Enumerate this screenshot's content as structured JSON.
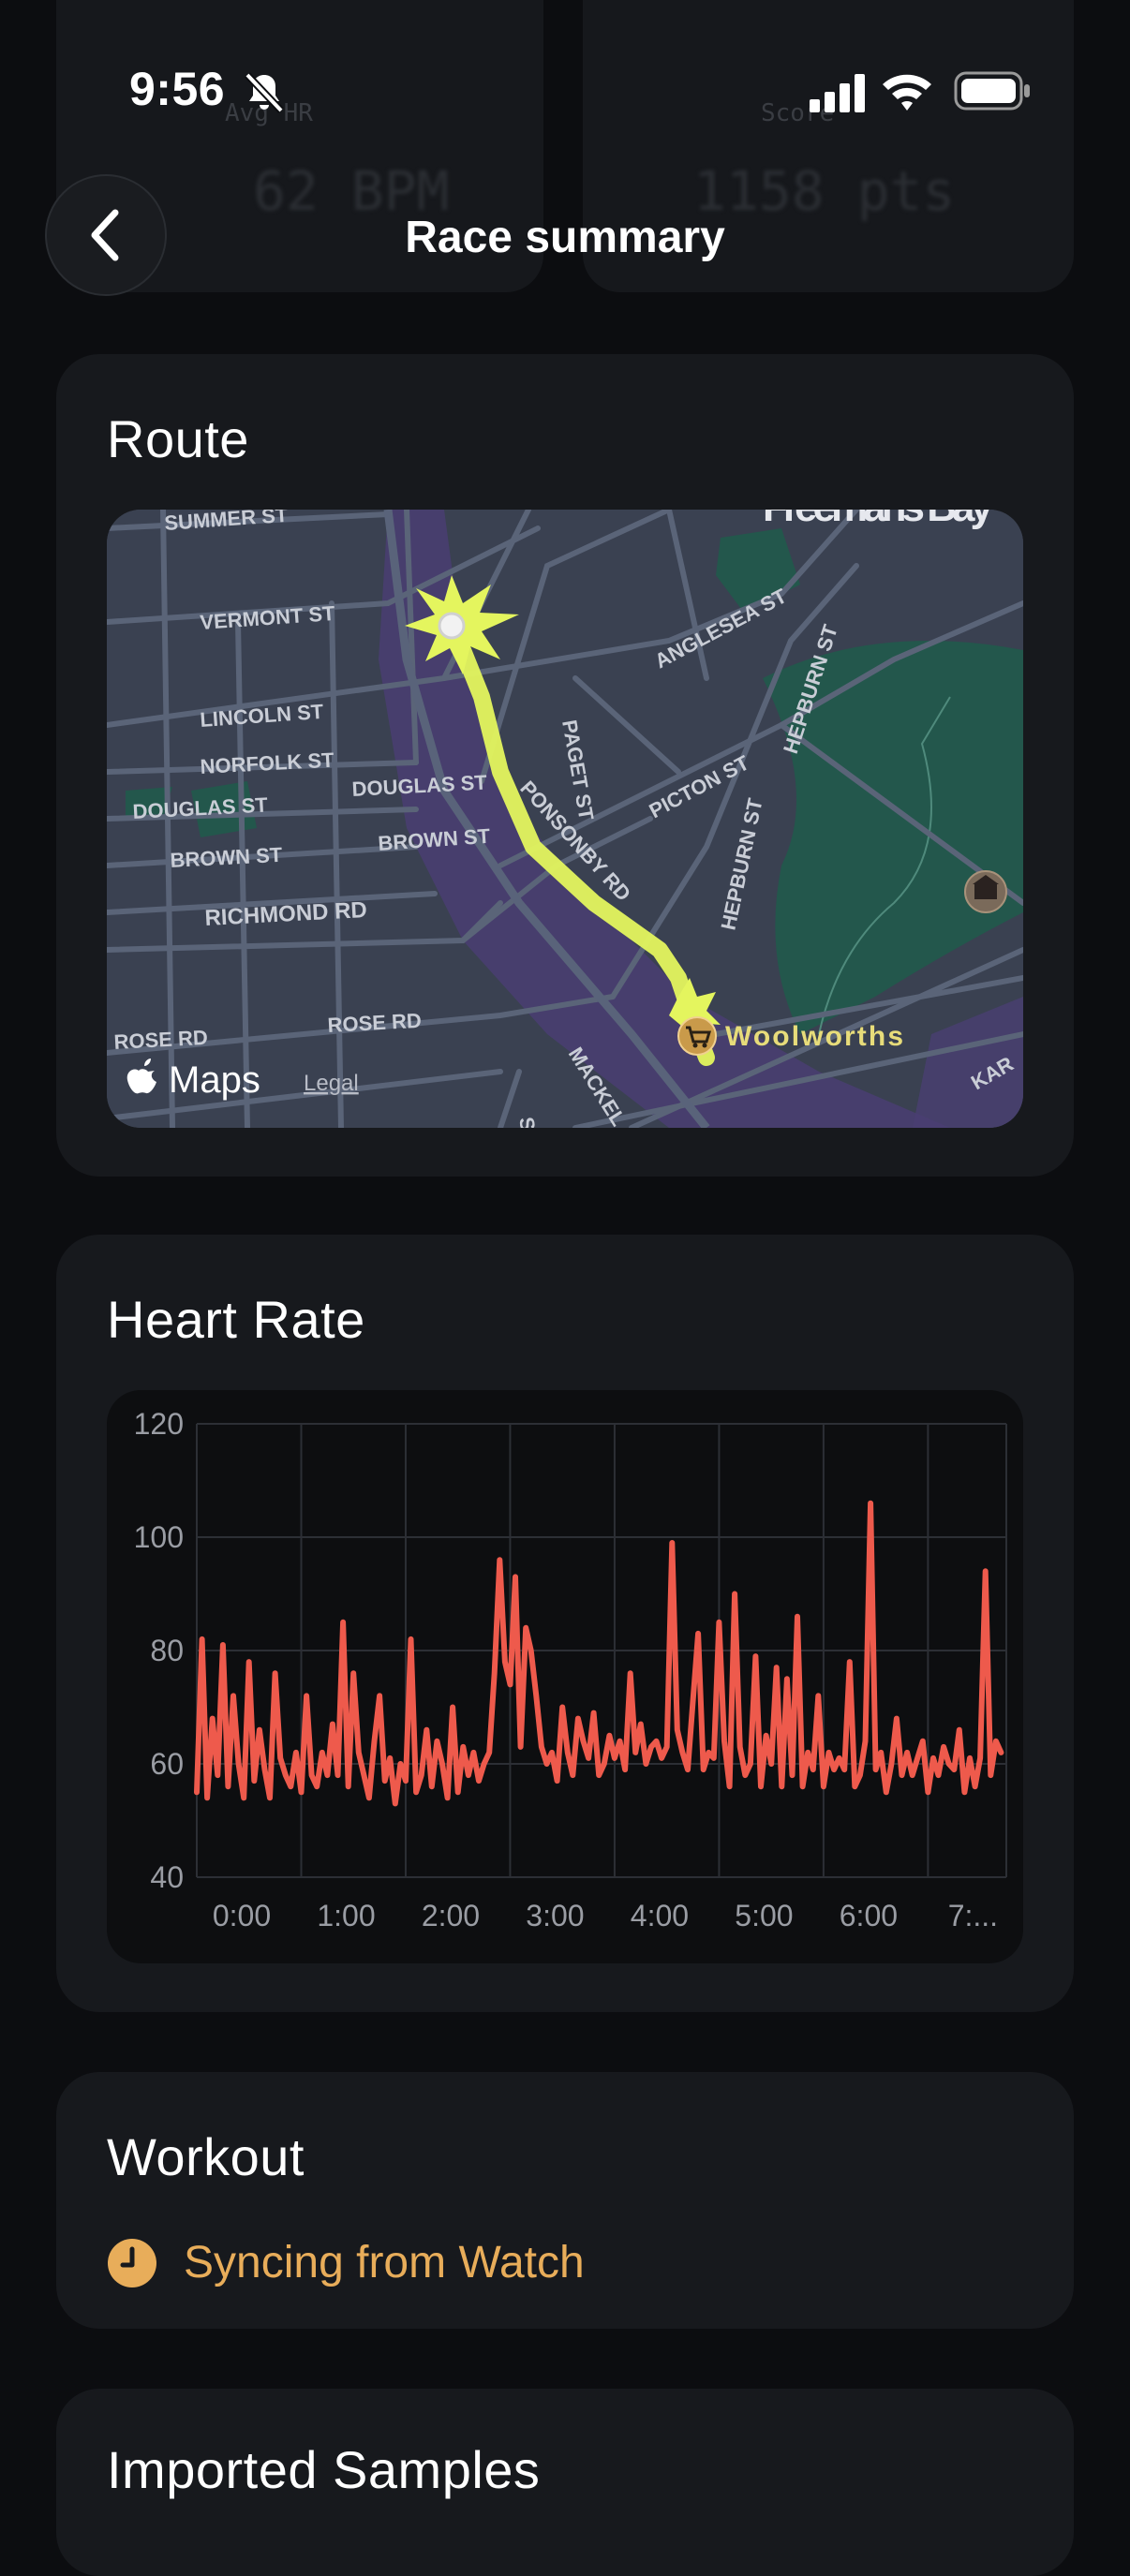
{
  "status_bar": {
    "time": "9:56"
  },
  "background_stats": [
    {
      "label": "Avg HR",
      "value": "62 BPM"
    },
    {
      "label": "Score",
      "value": "1158 pts"
    }
  ],
  "header": {
    "title": "Race summary"
  },
  "route": {
    "title": "Route",
    "map": {
      "streets": [
        "SUMMER ST",
        "VERMONT ST",
        "LINCOLN ST",
        "NORFOLK ST",
        "DOUGLAS ST",
        "DOUGLAS ST",
        "BROWN ST",
        "BROWN ST",
        "RICHMOND RD",
        "ROSE RD",
        "ROSE RD",
        "PONSONBY RD",
        "PAGET ST",
        "ANGLESEA ST",
        "PICTON ST",
        "HEPBURN ST",
        "HEPBURN ST",
        "MACKEL",
        "SC",
        "KAR"
      ],
      "area_label": "Freemans Bay",
      "poi": "Woolworths",
      "brand": "Maps",
      "legal": "Legal",
      "colors": {
        "route": "#e4f55e",
        "park": "#23574c",
        "road": "#5a6478",
        "district": "#4a3e72"
      }
    }
  },
  "heart_rate": {
    "title": "Heart Rate",
    "chart_data": {
      "type": "line",
      "xlabel": "",
      "ylabel": "",
      "ylim": [
        40,
        120
      ],
      "y_ticks": [
        120,
        100,
        80,
        60,
        40
      ],
      "x_tick_labels": [
        "0:00",
        "1:00",
        "2:00",
        "3:00",
        "4:00",
        "5:00",
        "6:00",
        "7:..."
      ],
      "xlim_minutes": [
        0,
        465
      ],
      "grid": true,
      "color": "#ee5a4c",
      "series": [
        {
          "x": [
            0,
            3,
            6,
            9,
            12,
            15,
            18,
            21,
            24,
            27,
            30,
            33,
            36,
            39,
            42,
            45,
            48,
            51,
            54,
            57,
            60,
            63,
            66,
            69,
            72,
            75,
            78,
            81,
            84,
            87,
            90,
            93,
            96,
            99,
            102,
            105,
            108,
            111,
            114,
            117,
            120,
            123,
            126,
            129,
            132,
            135,
            138,
            141,
            144,
            147,
            150,
            153,
            156,
            159,
            162,
            165,
            168,
            171,
            174,
            177,
            180,
            183,
            186,
            189,
            192,
            195,
            198,
            201,
            204,
            207,
            210,
            213,
            216,
            219,
            222,
            225,
            228,
            231,
            234,
            237,
            240,
            243,
            246,
            249,
            252,
            255,
            258,
            261,
            264,
            267,
            270,
            273,
            276,
            279,
            282,
            285,
            288,
            291,
            294,
            297,
            300,
            303,
            306,
            309,
            312,
            315,
            318,
            321,
            324,
            327,
            330,
            333,
            336,
            339,
            342,
            345,
            348,
            351,
            354,
            357,
            360,
            363,
            366,
            369,
            372,
            375,
            378,
            381,
            384,
            387,
            390,
            393,
            396,
            399,
            402,
            405,
            408,
            411,
            414,
            417,
            420,
            423,
            426,
            429,
            432,
            435,
            438,
            441,
            444,
            447,
            450,
            453,
            456,
            459,
            462
          ],
          "y": [
            55,
            82,
            54,
            68,
            58,
            81,
            56,
            72,
            60,
            54,
            78,
            57,
            66,
            59,
            54,
            76,
            61,
            58,
            56,
            62,
            55,
            72,
            58,
            56,
            62,
            58,
            67,
            58,
            85,
            56,
            76,
            62,
            58,
            54,
            64,
            72,
            57,
            61,
            53,
            60,
            57,
            82,
            55,
            58,
            66,
            56,
            64,
            60,
            54,
            70,
            55,
            63,
            58,
            62,
            57,
            60,
            62,
            76,
            96,
            78,
            74,
            93,
            63,
            84,
            80,
            72,
            63,
            60,
            62,
            57,
            70,
            62,
            58,
            68,
            64,
            61,
            69,
            58,
            60,
            65,
            61,
            64,
            59,
            76,
            62,
            67,
            60,
            63,
            64,
            61,
            63,
            99,
            66,
            62,
            59,
            71,
            83,
            59,
            62,
            61,
            85,
            64,
            56,
            90,
            63,
            58,
            60,
            79,
            56,
            65,
            60,
            77,
            56,
            75,
            58,
            86,
            56,
            62,
            59,
            72,
            56,
            62,
            59,
            61,
            59,
            78,
            56,
            58,
            64,
            106,
            59,
            62,
            55,
            60,
            68,
            58,
            62,
            58,
            61,
            64,
            55,
            61,
            58,
            63,
            60,
            59,
            66,
            55,
            61,
            56,
            61,
            94,
            58,
            64,
            62
          ]
        }
      ]
    }
  },
  "workout": {
    "title": "Workout",
    "sync_text": "Syncing from Watch",
    "sync_color": "#e8ad5a"
  },
  "next_card": {
    "title": "Imported Samples"
  }
}
